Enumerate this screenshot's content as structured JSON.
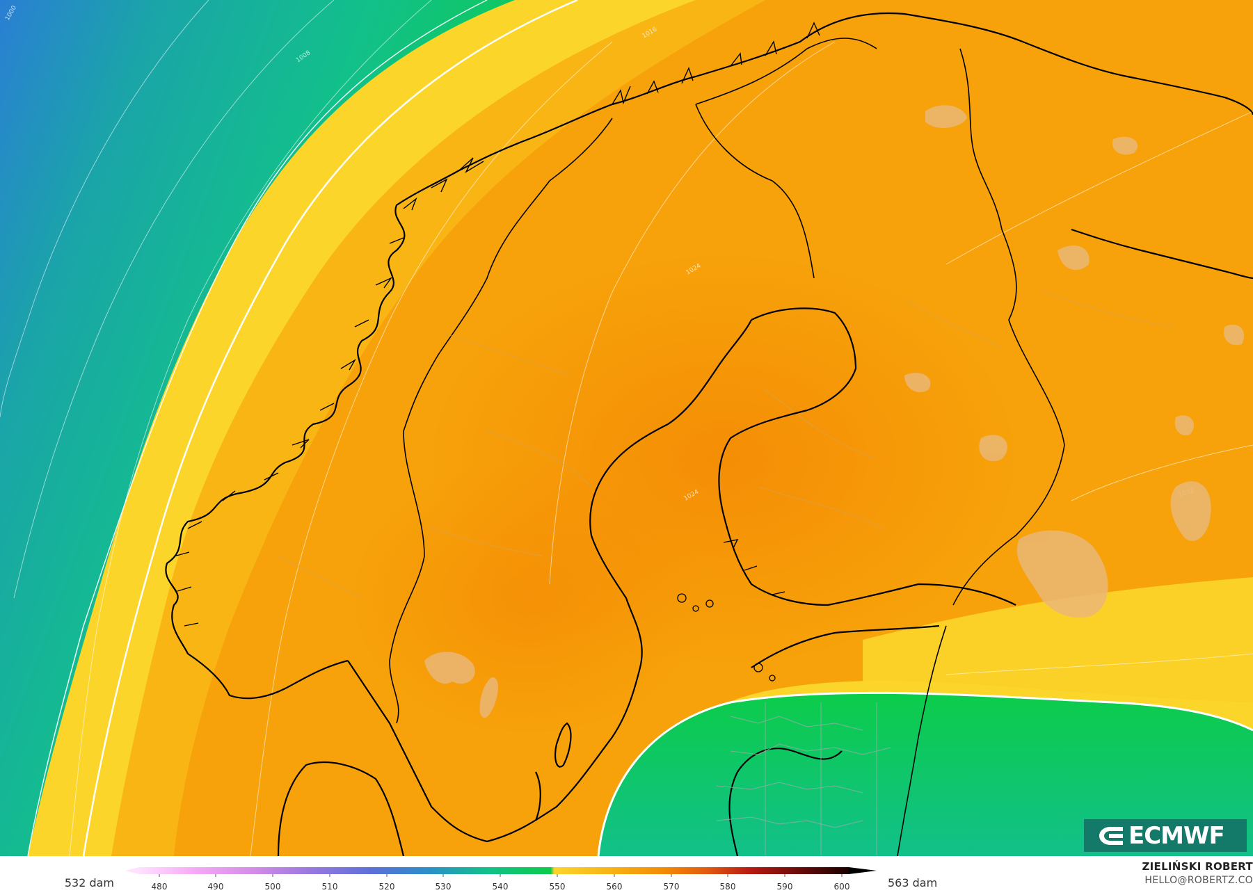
{
  "map": {
    "contour_labels": [
      "1000",
      "1008",
      "1016",
      "1024",
      "1024",
      "1032"
    ],
    "colors": {
      "deep_blue": "#2a7fd4",
      "teal_blue": "#1aa5a8",
      "teal": "#12c08a",
      "green": "#0ccc4a",
      "yellow": "#fbd52a",
      "light_orange": "#f8b514",
      "orange": "#f7a20a",
      "dark_orange": "#f48a04",
      "lake": "#eab776",
      "coast": "#000000"
    }
  },
  "legend": {
    "left_label": "532 dam",
    "right_label": "563 dam",
    "ticks": [
      "480",
      "490",
      "500",
      "510",
      "520",
      "530",
      "540",
      "550",
      "560",
      "570",
      "580",
      "590",
      "600"
    ]
  },
  "credit": {
    "author": "ZIELIŃSKI ROBERT",
    "email": "HELLO@ROBERTZ.CO"
  },
  "logo": {
    "text": "ECMWF",
    "icon": "ecmwf-logo-icon"
  }
}
